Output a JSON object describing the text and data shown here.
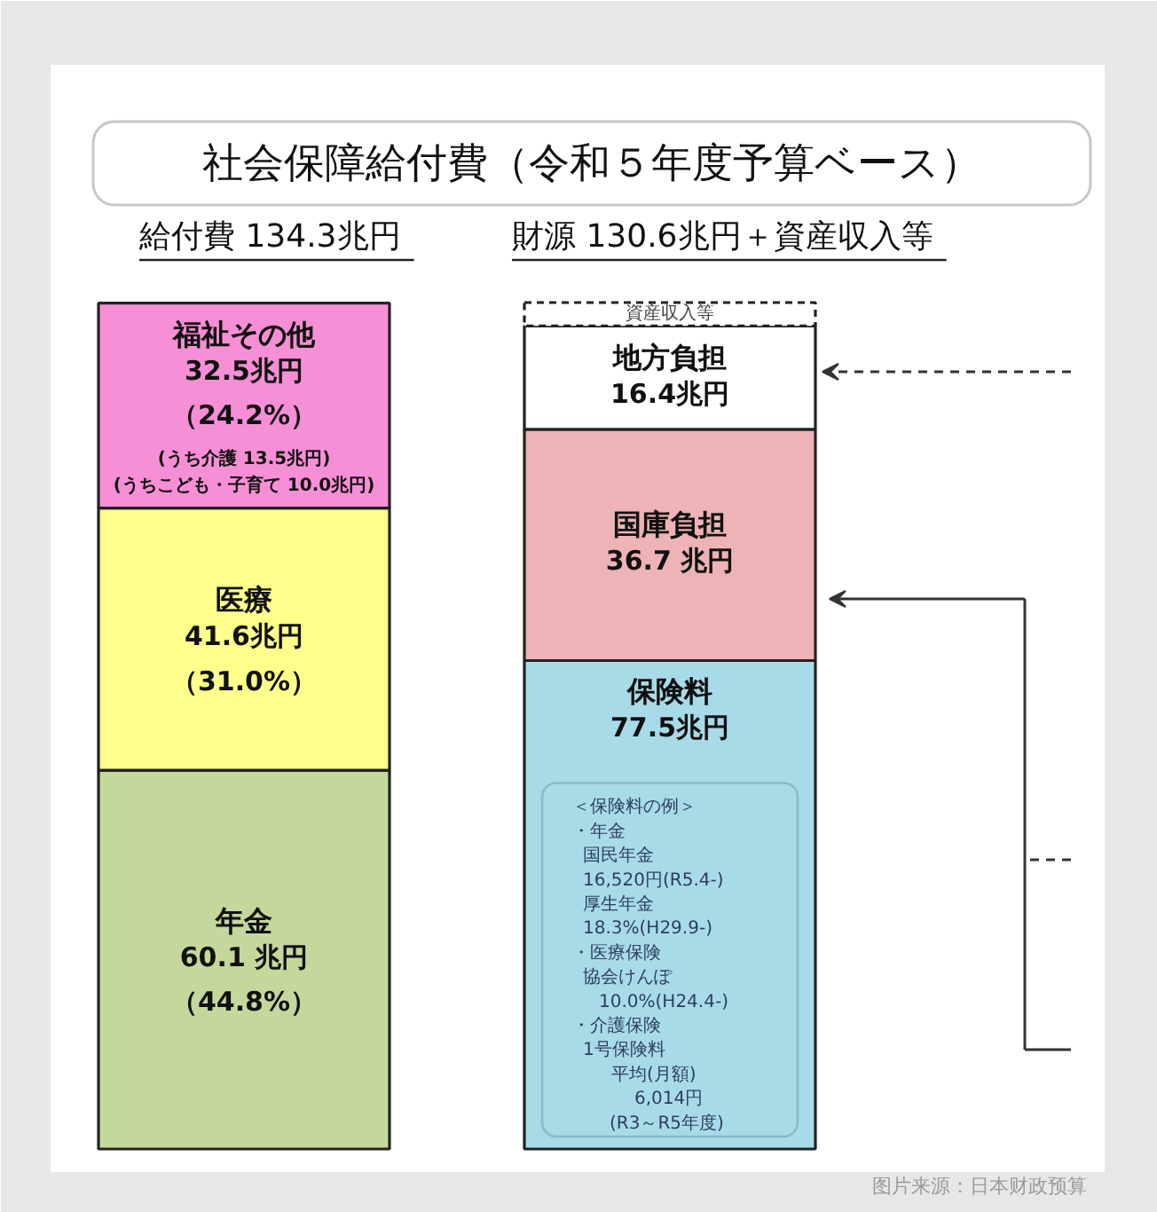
{
  "chart_data": {
    "type": "bar",
    "stacked": true,
    "title": "社会保障給付費（令和５年度予算ベース）",
    "categories": [
      "給付費 134.3兆円",
      "財源 130.6兆円＋資産収入等"
    ],
    "series": [
      {
        "name": "年金",
        "color": "#c4d89c",
        "values": [
          60.1,
          null
        ],
        "value_labels": [
          "60.1 兆円（44.8%）",
          null
        ]
      },
      {
        "name": "医療",
        "color": "#ffff8c",
        "values": [
          41.6,
          null
        ],
        "value_labels": [
          "41.6兆円（31.0%）",
          null
        ]
      },
      {
        "name": "福祉その他",
        "color": "#f78fd6",
        "values": [
          32.5,
          null
        ],
        "value_labels": [
          "32.5兆円（24.2%）",
          null
        ]
      },
      {
        "name": "保険料",
        "color": "#a8dbe8",
        "values": [
          null,
          77.5
        ],
        "value_labels": [
          null,
          "77.5兆円"
        ]
      },
      {
        "name": "国庫負担",
        "color": "#eeb3b6",
        "values": [
          null,
          36.7
        ],
        "value_labels": [
          null,
          "36.7 兆円"
        ]
      },
      {
        "name": "地方負担",
        "color": "#ffffff",
        "values": [
          null,
          16.4
        ],
        "value_labels": [
          null,
          "16.4兆円"
        ]
      },
      {
        "name": "資産収入等",
        "color": "#ffffff",
        "values": [
          null,
          3.7
        ],
        "line_style": "dashed"
      }
    ],
    "annotations": [
      "(うち介護 13.5兆円)",
      "(うちこども・子育て 10.0兆円)",
      "＜保険料の例＞",
      "・年金",
      "国民年金",
      "16,520円(R5.4-)",
      "厚生年金",
      "18.3%(H29.9-)",
      "・医療保険",
      "協会けんぽ",
      "10.0%(H24.4-)",
      "・介護保険",
      "1号保険料",
      "平均(月額)",
      "6,014円",
      "(R3～R5年度)",
      "图片来源：日本财政预算"
    ]
  }
}
